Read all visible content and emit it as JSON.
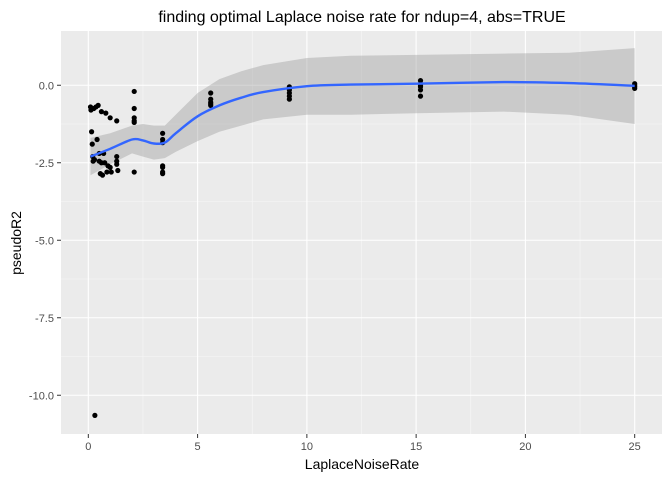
{
  "chart_data": {
    "type": "scatter",
    "title": "finding optimal Laplace noise rate for ndup=4, abs=TRUE",
    "xlabel": "LaplaceNoiseRate",
    "ylabel": "pseudoR2",
    "xlim": [
      -1.25,
      26.25
    ],
    "ylim": [
      -11.25,
      1.75
    ],
    "x_ticks": [
      0,
      5,
      10,
      15,
      20,
      25
    ],
    "y_ticks": [
      0.0,
      -2.5,
      -5.0,
      -7.5,
      -10.0
    ],
    "x_tick_labels": [
      "0",
      "5",
      "10",
      "15",
      "20",
      "25"
    ],
    "y_tick_labels": [
      "0.0",
      "-2.5",
      "-5.0",
      "-7.5",
      "-10.0"
    ],
    "grid": true,
    "legend": "none",
    "colors": {
      "panel": "#ebebeb",
      "grid_major": "#ffffff",
      "points": "#000000",
      "smooth_line": "#3366ff",
      "ribbon": "#999999"
    },
    "points": [
      {
        "x": 0.1,
        "y": -0.7
      },
      {
        "x": 0.12,
        "y": -0.8
      },
      {
        "x": 0.15,
        "y": -1.5
      },
      {
        "x": 0.18,
        "y": -1.9
      },
      {
        "x": 0.2,
        "y": -2.3
      },
      {
        "x": 0.22,
        "y": -2.45
      },
      {
        "x": 0.25,
        "y": -0.75
      },
      {
        "x": 0.28,
        "y": -2.4
      },
      {
        "x": 0.3,
        "y": -10.65
      },
      {
        "x": 0.35,
        "y": -0.7
      },
      {
        "x": 0.4,
        "y": -1.75
      },
      {
        "x": 0.45,
        "y": -0.65
      },
      {
        "x": 0.5,
        "y": -2.2
      },
      {
        "x": 0.5,
        "y": -2.45
      },
      {
        "x": 0.55,
        "y": -2.85
      },
      {
        "x": 0.6,
        "y": -0.85
      },
      {
        "x": 0.6,
        "y": -2.5
      },
      {
        "x": 0.65,
        "y": -2.9
      },
      {
        "x": 0.7,
        "y": -2.2
      },
      {
        "x": 0.75,
        "y": -2.5
      },
      {
        "x": 0.8,
        "y": -0.9
      },
      {
        "x": 0.85,
        "y": -2.8
      },
      {
        "x": 0.9,
        "y": -2.6
      },
      {
        "x": 1.0,
        "y": -1.05
      },
      {
        "x": 1.0,
        "y": -2.65
      },
      {
        "x": 1.05,
        "y": -2.8
      },
      {
        "x": 1.3,
        "y": -1.15
      },
      {
        "x": 1.3,
        "y": -2.3
      },
      {
        "x": 1.3,
        "y": -2.45
      },
      {
        "x": 1.3,
        "y": -2.55
      },
      {
        "x": 1.35,
        "y": -2.75
      },
      {
        "x": 2.1,
        "y": -0.2
      },
      {
        "x": 2.1,
        "y": -0.75
      },
      {
        "x": 2.1,
        "y": -1.05
      },
      {
        "x": 2.1,
        "y": -1.15
      },
      {
        "x": 2.1,
        "y": -1.2
      },
      {
        "x": 2.1,
        "y": -2.8
      },
      {
        "x": 3.4,
        "y": -1.55
      },
      {
        "x": 3.4,
        "y": -1.75
      },
      {
        "x": 3.4,
        "y": -1.85
      },
      {
        "x": 3.4,
        "y": -2.6
      },
      {
        "x": 3.4,
        "y": -2.65
      },
      {
        "x": 3.4,
        "y": -2.8
      },
      {
        "x": 3.4,
        "y": -2.85
      },
      {
        "x": 5.6,
        "y": -0.25
      },
      {
        "x": 5.6,
        "y": -0.45
      },
      {
        "x": 5.6,
        "y": -0.55
      },
      {
        "x": 5.6,
        "y": -0.6
      },
      {
        "x": 5.6,
        "y": -0.65
      },
      {
        "x": 9.2,
        "y": -0.05
      },
      {
        "x": 9.2,
        "y": -0.15
      },
      {
        "x": 9.2,
        "y": -0.25
      },
      {
        "x": 9.2,
        "y": -0.35
      },
      {
        "x": 9.2,
        "y": -0.45
      },
      {
        "x": 15.2,
        "y": 0.15
      },
      {
        "x": 15.2,
        "y": 0.05
      },
      {
        "x": 15.2,
        "y": 0.0
      },
      {
        "x": 15.2,
        "y": -0.05
      },
      {
        "x": 15.2,
        "y": -0.15
      },
      {
        "x": 15.2,
        "y": -0.35
      },
      {
        "x": 25.0,
        "y": 0.05
      },
      {
        "x": 25.0,
        "y": 0.0
      },
      {
        "x": 25.0,
        "y": -0.05
      },
      {
        "x": 25.0,
        "y": -0.1
      }
    ],
    "smooth_line": {
      "x": [
        0.1,
        1.0,
        2.0,
        2.5,
        3.0,
        3.5,
        4.0,
        5.0,
        6.0,
        7.0,
        8.0,
        10.0,
        12.0,
        15.0,
        19.0,
        22.0,
        25.0
      ],
      "y": [
        -2.3,
        -2.05,
        -1.75,
        -1.78,
        -1.88,
        -1.85,
        -1.55,
        -1.0,
        -0.65,
        -0.4,
        -0.22,
        -0.03,
        0.02,
        0.05,
        0.1,
        0.07,
        -0.02
      ],
      "lower": [
        -2.9,
        -2.55,
        -2.2,
        -2.3,
        -2.4,
        -2.35,
        -2.15,
        -1.8,
        -1.5,
        -1.3,
        -1.1,
        -0.95,
        -0.95,
        -0.9,
        -0.85,
        -0.95,
        -1.25
      ],
      "upper": [
        -1.7,
        -1.55,
        -1.3,
        -1.25,
        -1.3,
        -1.3,
        -0.95,
        -0.25,
        0.2,
        0.45,
        0.65,
        0.88,
        0.95,
        0.98,
        1.02,
        1.05,
        1.2
      ]
    }
  }
}
